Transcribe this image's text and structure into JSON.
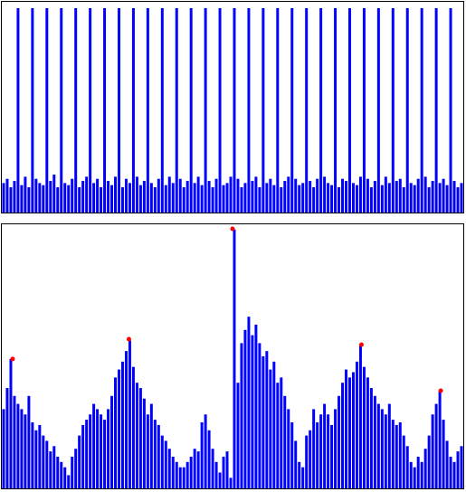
{
  "chart_data": [
    {
      "type": "bar",
      "color": "#0000ff",
      "xlim": [
        0,
        128
      ],
      "ylim": [
        0,
        100
      ],
      "values": [
        14,
        16,
        12,
        15,
        97,
        13,
        17,
        12,
        97,
        16,
        14,
        13,
        97,
        15,
        18,
        12,
        97,
        14,
        13,
        16,
        97,
        12,
        15,
        17,
        97,
        14,
        16,
        12,
        97,
        15,
        13,
        17,
        97,
        12,
        16,
        14,
        97,
        17,
        13,
        15,
        97,
        14,
        12,
        16,
        97,
        13,
        17,
        14,
        97,
        16,
        12,
        15,
        97,
        14,
        17,
        13,
        97,
        15,
        12,
        16,
        97,
        13,
        14,
        17,
        97,
        16,
        12,
        14,
        97,
        15,
        17,
        12,
        97,
        14,
        16,
        13,
        97,
        12,
        15,
        17,
        97,
        16,
        13,
        14,
        97,
        15,
        12,
        16,
        97,
        17,
        14,
        13,
        97,
        12,
        16,
        15,
        97,
        14,
        13,
        17,
        97,
        16,
        12,
        15,
        97,
        13,
        17,
        14,
        97,
        15,
        16,
        12,
        97,
        14,
        13,
        16,
        97,
        17,
        12,
        15,
        97,
        14,
        16,
        13,
        97,
        15,
        12,
        14
      ]
    },
    {
      "type": "bar",
      "color": "#0000ff",
      "xlim": [
        0,
        128
      ],
      "ylim": [
        0,
        100
      ],
      "values": [
        30,
        38,
        49,
        35,
        32,
        30,
        28,
        35,
        25,
        22,
        24,
        20,
        18,
        14,
        16,
        12,
        10,
        8,
        5,
        12,
        15,
        20,
        24,
        26,
        28,
        32,
        30,
        28,
        26,
        30,
        35,
        42,
        45,
        48,
        52,
        56,
        46,
        40,
        38,
        34,
        28,
        32,
        26,
        24,
        20,
        18,
        15,
        12,
        10,
        8,
        8,
        10,
        12,
        15,
        14,
        25,
        28,
        22,
        15,
        10,
        6,
        12,
        14,
        4,
        98,
        40,
        55,
        60,
        65,
        58,
        62,
        55,
        50,
        52,
        45,
        48,
        40,
        42,
        35,
        30,
        25,
        18,
        10,
        8,
        20,
        22,
        30,
        25,
        28,
        32,
        28,
        24,
        30,
        35,
        40,
        45,
        42,
        44,
        48,
        54,
        46,
        42,
        38,
        35,
        32,
        30,
        28,
        32,
        26,
        24,
        25,
        20,
        16,
        10,
        8,
        12,
        10,
        15,
        20,
        28,
        32,
        37,
        26,
        18,
        12,
        10,
        14,
        16
      ],
      "peaks": {
        "color": "#ff0000",
        "x": [
          3,
          35.25,
          64,
          99.75,
          121.75
        ],
        "y": [
          49,
          56.5,
          98.3,
          54.4,
          37
        ]
      }
    }
  ]
}
